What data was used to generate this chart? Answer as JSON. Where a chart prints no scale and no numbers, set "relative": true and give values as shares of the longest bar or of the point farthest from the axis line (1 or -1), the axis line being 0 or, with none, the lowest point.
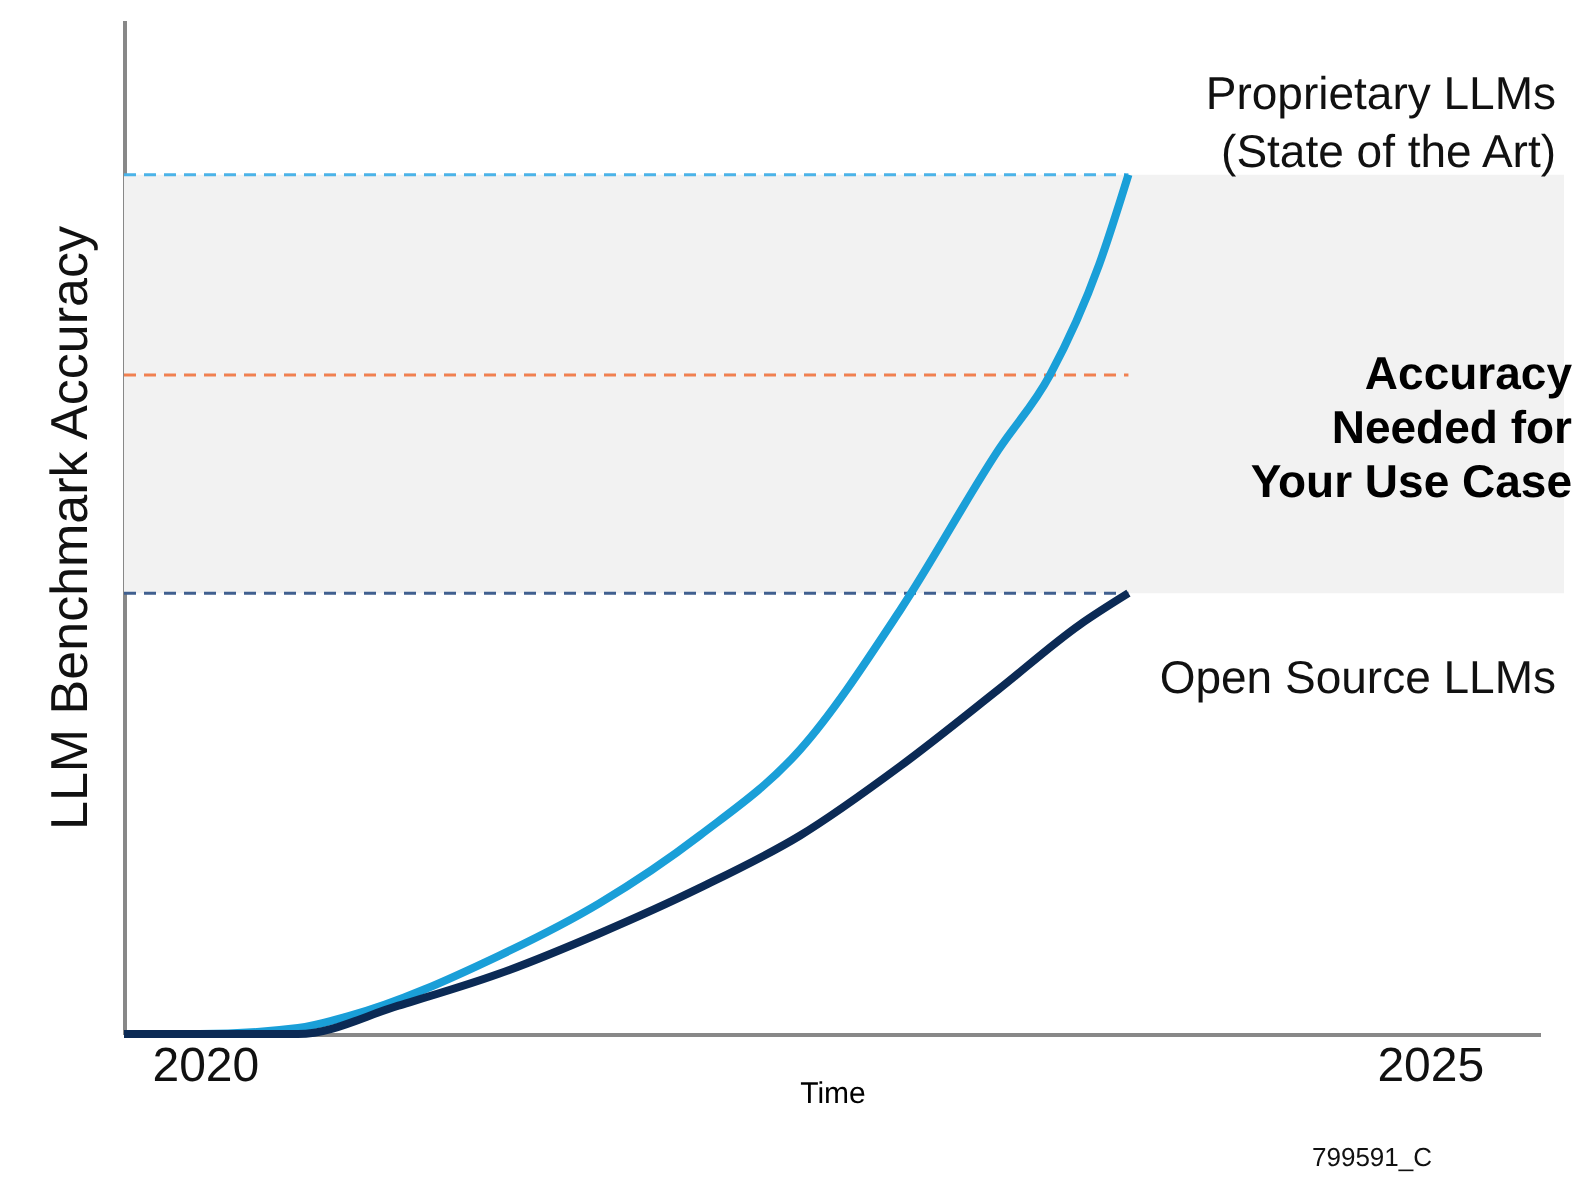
{
  "chart_data": {
    "type": "line",
    "relative": true,
    "xlabel": "Time",
    "ylabel": "LLM Benchmark Accuracy",
    "xlim": [
      2019.67,
      2025.45
    ],
    "xticks": [
      2020,
      2025
    ],
    "grid": false,
    "marker": "none",
    "line_style": "solid",
    "series": [
      {
        "name": "Proprietary LLMs\n(State of the Art)",
        "color": "#1a9fd8",
        "x": [
          2019.67,
          2019.98,
          2020.38,
          2020.59,
          2021.2,
          2021.61,
          2022.02,
          2022.43,
          2022.84,
          2023.24,
          2023.45,
          2023.65,
          2023.77
        ],
        "values": [
          0,
          0,
          0.007,
          0.021,
          0.091,
          0.152,
          0.231,
          0.331,
          0.494,
          0.68,
          0.767,
          0.895,
          1
        ]
      },
      {
        "name": "Open Source LLMs",
        "color": "#0b2a55",
        "x": [
          2019.67,
          2020.38,
          2020.79,
          2021.2,
          2021.61,
          2022.02,
          2022.43,
          2022.84,
          2023.24,
          2023.57,
          2023.77
        ],
        "values": [
          0,
          0,
          0.033,
          0.07,
          0.117,
          0.17,
          0.231,
          0.312,
          0.401,
          0.476,
          0.513
        ]
      }
    ],
    "ref_lines": [
      {
        "axis": "y",
        "value": 1,
        "color": "#4bb3e8",
        "line_style": "dashed"
      },
      {
        "axis": "y",
        "value": 0.767,
        "color": "#f08050",
        "line_style": "dashed",
        "label": "Accuracy\nNeeded for\nYour Use Case"
      },
      {
        "axis": "y",
        "value": 0.513,
        "color": "#3f5f8f",
        "line_style": "dashed"
      }
    ],
    "bands": [
      {
        "axis": "y",
        "from": 0.513,
        "to": 1,
        "color": "#f2f2f2"
      }
    ],
    "annotations": [
      "799591_C"
    ]
  }
}
